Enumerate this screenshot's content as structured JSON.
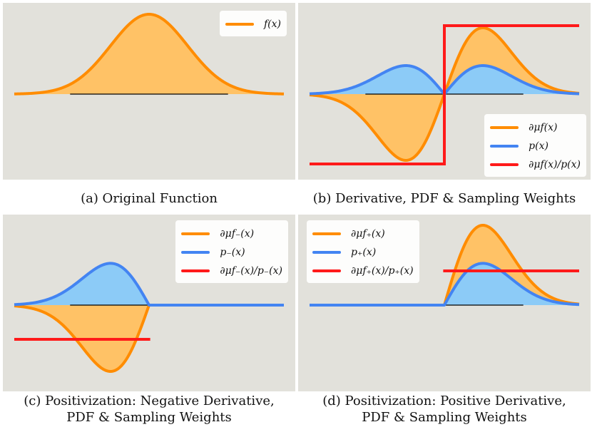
{
  "colors": {
    "panel_bg": "#e2e1db",
    "orange": "#ff8c00",
    "orange_fill": "#ffc266",
    "blue": "#4384f2",
    "blue_fill": "#8ccbf7",
    "red": "#ff1a1a",
    "axis": "#000000"
  },
  "chart_data": [
    {
      "id": "a",
      "type": "area",
      "caption": "(a) Original Function",
      "legend_position": "top-right",
      "x_range": [
        -3.5,
        3.5
      ],
      "series": [
        {
          "name": "f(x)",
          "kind": "gaussian",
          "color": "orange",
          "fill": "orange_fill",
          "x": [
            -3.5,
            -2,
            -1,
            0,
            1,
            2,
            3.5
          ],
          "values": [
            0.002,
            0.135,
            0.607,
            1.0,
            0.607,
            0.135,
            0.002
          ]
        }
      ]
    },
    {
      "id": "b",
      "type": "area",
      "caption": "(b) Derivative, PDF & Sampling Weights",
      "legend_position": "bottom-right",
      "x_range": [
        -3.5,
        3.5
      ],
      "series": [
        {
          "name": "∂μf(x)/p(x)",
          "kind": "step",
          "color": "red",
          "values": [
            -1,
            1
          ]
        },
        {
          "name": "p(x)",
          "kind": "abs_derivative",
          "color": "blue",
          "fill": "blue_fill",
          "x": [
            -1,
            0,
            1
          ],
          "values": [
            0.43,
            0,
            0.43
          ]
        },
        {
          "name": "∂μf(x)",
          "kind": "derivative",
          "color": "orange",
          "fill": "orange_fill",
          "x": [
            -1,
            0,
            1
          ],
          "values": [
            -1.0,
            0,
            1.0
          ]
        }
      ]
    },
    {
      "id": "c",
      "type": "area",
      "caption": "(c) Positivization: Negative Derivative, PDF & Sampling Weights",
      "legend_position": "top-right",
      "x_range": [
        -3.5,
        3.5
      ],
      "series": [
        {
          "name": "p₋(x)",
          "kind": "pdf_negative",
          "color": "blue",
          "fill": "blue_fill",
          "x": [
            -1,
            0
          ],
          "values": [
            0.63,
            0
          ]
        },
        {
          "name": "∂μf₋(x)",
          "kind": "derivative_negative",
          "color": "orange",
          "fill": "orange_fill",
          "x": [
            -1,
            0
          ],
          "values": [
            -1.0,
            0
          ]
        },
        {
          "name": "∂μf₋(x)/p₋(x)",
          "kind": "constant",
          "color": "red",
          "values": [
            -0.48
          ]
        }
      ]
    },
    {
      "id": "d",
      "type": "area",
      "caption": "(d) Positivization: Positive Derivative, PDF & Sampling Weights",
      "legend_position": "top-left",
      "x_range": [
        -3.5,
        3.5
      ],
      "series": [
        {
          "name": "∂μf₊(x)",
          "kind": "derivative_positive",
          "color": "orange",
          "fill": "orange_fill",
          "x": [
            0,
            1
          ],
          "values": [
            0,
            1.0
          ]
        },
        {
          "name": "p₊(x)",
          "kind": "pdf_positive",
          "color": "blue",
          "fill": "blue_fill",
          "x": [
            0,
            1
          ],
          "values": [
            0,
            0.63
          ]
        },
        {
          "name": "∂μf₊(x)/p₊(x)",
          "kind": "constant",
          "color": "red",
          "values": [
            0.48
          ]
        }
      ]
    }
  ],
  "legends": {
    "a": [
      "f(x)"
    ],
    "b": [
      "∂μf(x)",
      "p(x)",
      "∂μf(x)/p(x)"
    ],
    "c": [
      "∂μf₋(x)",
      "p₋(x)",
      "∂μf₋(x)/p₋(x)"
    ],
    "d": [
      "∂μf₊(x)",
      "p₊(x)",
      "∂μf₊(x)/p₊(x)"
    ]
  },
  "captions": {
    "a": "(a) Original Function",
    "b": "(b) Derivative, PDF & Sampling Weights",
    "c1": "(c) Positivization: Negative Derivative,",
    "c2": "PDF & Sampling Weights",
    "d1": "(d) Positivization: Positive Derivative,",
    "d2": "PDF & Sampling Weights"
  }
}
